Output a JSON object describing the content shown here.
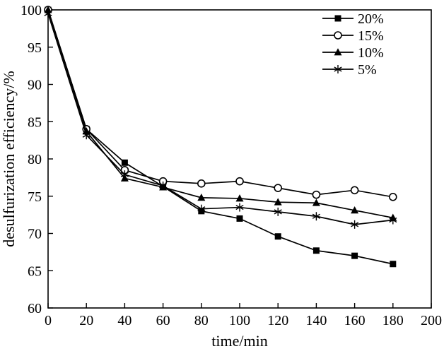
{
  "chart_data": {
    "type": "line",
    "title": "",
    "xlabel": "time/min",
    "ylabel": "desulfurization efficiency/%",
    "xlim": [
      0,
      200
    ],
    "ylim": [
      60,
      100
    ],
    "xticks": [
      0,
      20,
      40,
      60,
      80,
      100,
      120,
      140,
      160,
      180,
      200
    ],
    "yticks": [
      60,
      65,
      70,
      75,
      80,
      85,
      90,
      95,
      100
    ],
    "grid": false,
    "legend_position": "top-right",
    "line_color": "#000000",
    "background_color": "#ffffff",
    "x": [
      0,
      20,
      40,
      60,
      80,
      100,
      120,
      140,
      160,
      180
    ],
    "series": [
      {
        "name": "20%",
        "marker": "filled-square",
        "values": [
          100,
          84.0,
          79.5,
          76.3,
          73.0,
          72.0,
          69.6,
          67.7,
          67.0,
          65.9
        ]
      },
      {
        "name": "15%",
        "marker": "open-circle",
        "values": [
          100,
          84.0,
          78.5,
          77.0,
          76.7,
          77.0,
          76.1,
          75.2,
          75.8,
          74.9
        ]
      },
      {
        "name": "10%",
        "marker": "filled-triangle",
        "values": [
          100,
          83.7,
          77.4,
          76.2,
          74.8,
          74.7,
          74.2,
          74.1,
          73.1,
          72.1
        ]
      },
      {
        "name": "5%",
        "marker": "asterisk",
        "values": [
          99.5,
          83.2,
          77.9,
          76.4,
          73.3,
          73.5,
          72.9,
          72.3,
          71.2,
          71.8
        ]
      }
    ]
  }
}
